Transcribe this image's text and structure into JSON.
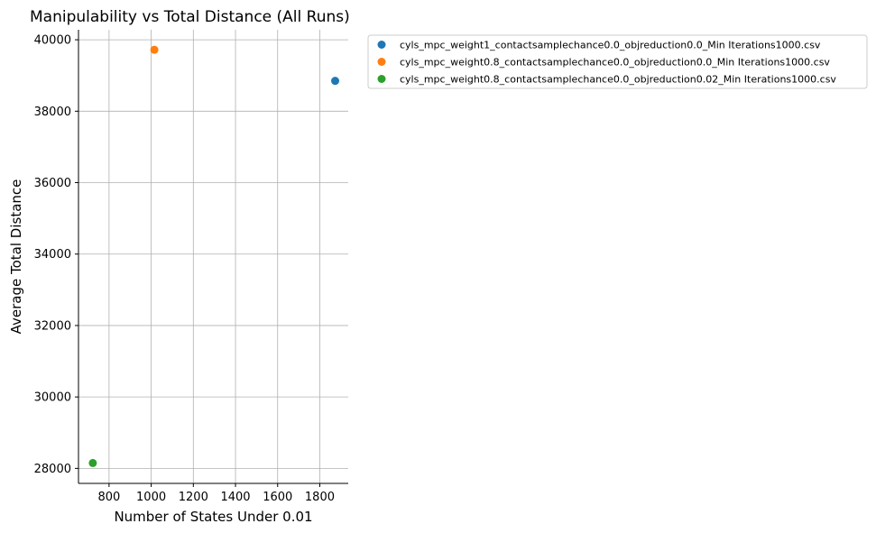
{
  "chart_data": {
    "type": "scatter",
    "title": "Manipulability vs Total Distance (All Runs)",
    "xlabel": "Number of States Under 0.01",
    "ylabel": "Average Total Distance",
    "xlim": [
      655,
      1935
    ],
    "ylim": [
      27580,
      40280
    ],
    "xticks": [
      800,
      1000,
      1200,
      1400,
      1600,
      1800
    ],
    "yticks": [
      28000,
      30000,
      32000,
      34000,
      36000,
      38000,
      40000
    ],
    "grid": true,
    "legend_position": "outside-top-right",
    "series": [
      {
        "name": "cyls_mpc_weight1_contactsamplechance0.0_objreduction0.0_Min Iterations1000.csv",
        "color": "#1f77b4",
        "x": [
          1873
        ],
        "y": [
          38850
        ]
      },
      {
        "name": "cyls_mpc_weight0.8_contactsamplechance0.0_objreduction0.0_Min Iterations1000.csv",
        "color": "#ff7f0e",
        "x": [
          1015
        ],
        "y": [
          39720
        ]
      },
      {
        "name": "cyls_mpc_weight0.8_contactsamplechance0.0_objreduction0.02_Min Iterations1000.csv",
        "color": "#2ca02c",
        "x": [
          723
        ],
        "y": [
          28150
        ]
      }
    ]
  }
}
